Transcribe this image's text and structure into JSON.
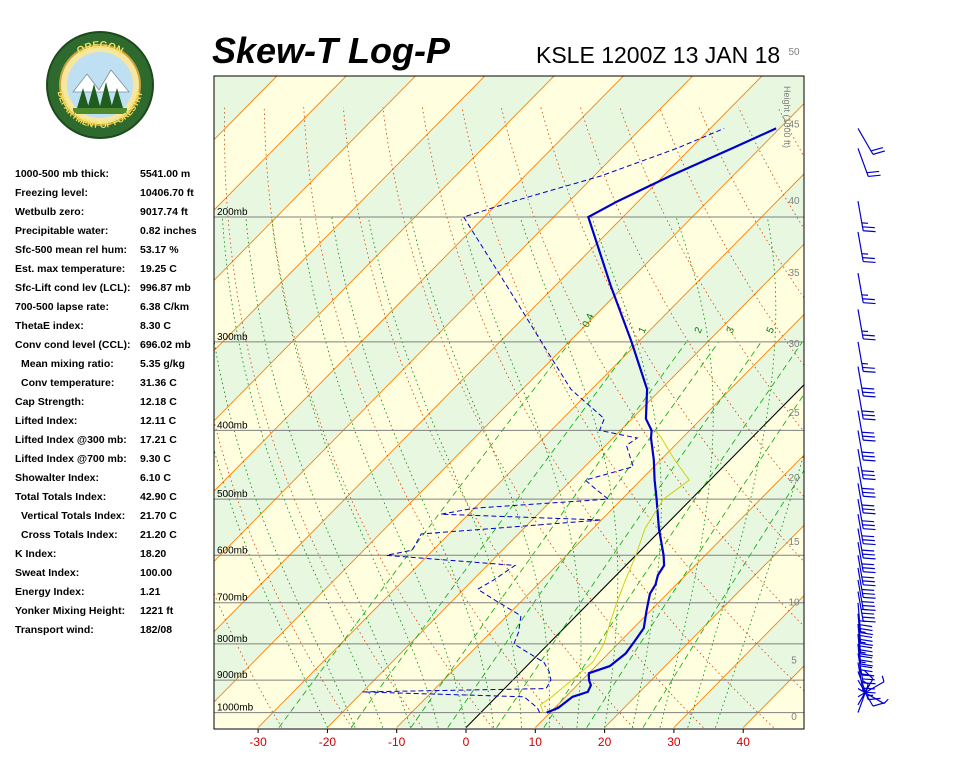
{
  "header": {
    "title": "Skew-T Log-P",
    "station_time": "KSLE 1200Z 13 JAN 18"
  },
  "logo": {
    "top_text": "OREGON",
    "bottom_text": "DEPARTMENT OF FORESTRY"
  },
  "indices": [
    {
      "label": "1000-500 mb thick:",
      "value": "5541.00 m"
    },
    {
      "label": "Freezing level:",
      "value": "10406.70 ft"
    },
    {
      "label": "Wetbulb zero:",
      "value": "9017.74 ft"
    },
    {
      "label": "Precipitable water:",
      "value": "0.82 inches"
    },
    {
      "label": "Sfc-500 mean rel hum:",
      "value": "53.17 %"
    },
    {
      "label": "Est. max temperature:",
      "value": "19.25 C"
    },
    {
      "label": "Sfc-Lift cond lev (LCL):",
      "value": "996.87 mb"
    },
    {
      "label": "700-500 lapse rate:",
      "value": "6.38 C/km"
    },
    {
      "label": "ThetaE index:",
      "value": "8.30 C"
    },
    {
      "label": "Conv cond level (CCL):",
      "value": "696.02 mb"
    },
    {
      "label": "Mean mixing ratio:",
      "value": "5.35 g/kg",
      "indent": true
    },
    {
      "label": "Conv temperature:",
      "value": "31.36 C",
      "indent": true
    },
    {
      "label": "Cap Strength:",
      "value": "12.18 C"
    },
    {
      "label": "Lifted Index:",
      "value": "12.11 C"
    },
    {
      "label": "Lifted Index @300 mb:",
      "value": "17.21 C"
    },
    {
      "label": "Lifted Index @700 mb:",
      "value": "9.30 C"
    },
    {
      "label": "Showalter Index:",
      "value": "6.10 C"
    },
    {
      "label": "Total Totals Index:",
      "value": "42.90 C"
    },
    {
      "label": "Vertical Totals Index:",
      "value": "21.70 C",
      "indent": true
    },
    {
      "label": "Cross Totals Index:",
      "value": "21.20 C",
      "indent": true
    },
    {
      "label": "K Index:",
      "value": "18.20"
    },
    {
      "label": "Sweat Index:",
      "value": "100.00"
    },
    {
      "label": "Energy Index:",
      "value": "1.21"
    },
    {
      "label": "Yonker Mixing Height:",
      "value": "1221 ft"
    },
    {
      "label": "Transport wind:",
      "value": "182/08"
    }
  ],
  "chart_data": {
    "type": "line",
    "chart_kind": "skew-t log-p",
    "xlabel": "",
    "ylabel": "",
    "x_axis": {
      "unit": "C",
      "ticks": [
        -30,
        -20,
        -10,
        0,
        10,
        20,
        30,
        40
      ],
      "color": "#cc0000"
    },
    "pressure_axis": {
      "labels": [
        "200mb",
        "300mb",
        "400mb",
        "500mb",
        "600mb",
        "700mb",
        "800mb",
        "900mb",
        "1000mb"
      ],
      "pressures": [
        200,
        300,
        400,
        500,
        600,
        700,
        800,
        900,
        1000
      ],
      "range_mb": [
        1050,
        150
      ],
      "scale": "log"
    },
    "height_axis": {
      "label": "Height (1000 ft)",
      "ticks": [
        "0",
        "5",
        "10",
        "15",
        "20",
        "25",
        "30",
        "35",
        "40",
        "45",
        "50"
      ],
      "pressures": [
        1015,
        845,
        699,
        575,
        467,
        378,
        302,
        240,
        190,
        148,
        117
      ]
    },
    "mixing_ratio_labels": [
      "0.4",
      "1",
      "2",
      "3",
      "5"
    ],
    "grid": true,
    "colors": {
      "temperature": "#0000cc",
      "dewpoint": "#0000cc",
      "parcel": "#cccc00",
      "isotherm": "#ff8000",
      "dry_adiabat": "#d04000",
      "moist_adiabat": "#008000",
      "mixing_ratio": "#00aa00",
      "isobar": "#808080",
      "band_yellow": "#ffffe0",
      "band_green": "#e8f8e0",
      "freezing": "#000000",
      "wind_barbs": "#0000cc",
      "tick_labels": "#cc0000"
    },
    "series": [
      {
        "name": "Temperature",
        "style": "solid",
        "points": [
          {
            "p": 1000,
            "t": 9.5
          },
          {
            "p": 985,
            "t": 10.5
          },
          {
            "p": 950,
            "t": 11.0
          },
          {
            "p": 935,
            "t": 12.5
          },
          {
            "p": 915,
            "t": 12.0
          },
          {
            "p": 900,
            "t": 11.0
          },
          {
            "p": 880,
            "t": 10.0
          },
          {
            "p": 860,
            "t": 12.0
          },
          {
            "p": 825,
            "t": 12.5
          },
          {
            "p": 790,
            "t": 12.0
          },
          {
            "p": 760,
            "t": 11.5
          },
          {
            "p": 720,
            "t": 9.5
          },
          {
            "p": 680,
            "t": 7.5
          },
          {
            "p": 660,
            "t": 7.0
          },
          {
            "p": 640,
            "t": 6.0
          },
          {
            "p": 620,
            "t": 5.5
          },
          {
            "p": 600,
            "t": 4.0
          },
          {
            "p": 550,
            "t": -0.5
          },
          {
            "p": 500,
            "t": -5.0
          },
          {
            "p": 470,
            "t": -8.0
          },
          {
            "p": 440,
            "t": -11.0
          },
          {
            "p": 410,
            "t": -14.5
          },
          {
            "p": 400,
            "t": -15.5
          },
          {
            "p": 385,
            "t": -18.0
          },
          {
            "p": 350,
            "t": -22.0
          },
          {
            "p": 300,
            "t": -31.0
          },
          {
            "p": 250,
            "t": -42.0
          },
          {
            "p": 200,
            "t": -55.0
          },
          {
            "p": 190,
            "t": -53.0
          },
          {
            "p": 175,
            "t": -49.0
          },
          {
            "p": 160,
            "t": -44.0
          },
          {
            "p": 150,
            "t": -40.5
          }
        ]
      },
      {
        "name": "Dewpoint",
        "style": "dashed",
        "points": [
          {
            "p": 1000,
            "t": 8.5
          },
          {
            "p": 985,
            "t": 7.5
          },
          {
            "p": 950,
            "t": 4.0
          },
          {
            "p": 935,
            "t": -20.0
          },
          {
            "p": 925,
            "t": 6.0
          },
          {
            "p": 900,
            "t": 5.5
          },
          {
            "p": 875,
            "t": 4.0
          },
          {
            "p": 850,
            "t": 2.0
          },
          {
            "p": 800,
            "t": -5.0
          },
          {
            "p": 770,
            "t": -6.0
          },
          {
            "p": 730,
            "t": -8.0
          },
          {
            "p": 700,
            "t": -13.0
          },
          {
            "p": 670,
            "t": -18.0
          },
          {
            "p": 650,
            "t": -17.0
          },
          {
            "p": 620,
            "t": -16.0
          },
          {
            "p": 600,
            "t": -36.0
          },
          {
            "p": 590,
            "t": -33.0
          },
          {
            "p": 560,
            "t": -34.0
          },
          {
            "p": 535,
            "t": -10.0
          },
          {
            "p": 525,
            "t": -34.0
          },
          {
            "p": 515,
            "t": -30.0
          },
          {
            "p": 500,
            "t": -12.0
          },
          {
            "p": 480,
            "t": -16.0
          },
          {
            "p": 470,
            "t": -18.0
          },
          {
            "p": 450,
            "t": -13.0
          },
          {
            "p": 420,
            "t": -17.0
          },
          {
            "p": 410,
            "t": -16.5
          },
          {
            "p": 400,
            "t": -23.0
          },
          {
            "p": 385,
            "t": -24.0
          },
          {
            "p": 350,
            "t": -33.0
          },
          {
            "p": 300,
            "t": -44.0
          },
          {
            "p": 250,
            "t": -57.0
          },
          {
            "p": 200,
            "t": -73.0
          },
          {
            "p": 190,
            "t": -68.0
          },
          {
            "p": 175,
            "t": -59.0
          },
          {
            "p": 160,
            "t": -52.0
          },
          {
            "p": 150,
            "t": -48.0
          }
        ]
      },
      {
        "name": "Parcel",
        "style": "thin",
        "points": [
          {
            "p": 1000,
            "t": 9.0
          },
          {
            "p": 975,
            "t": 7.5
          },
          {
            "p": 950,
            "t": 8.0
          },
          {
            "p": 900,
            "t": 8.5
          },
          {
            "p": 850,
            "t": 9.0
          },
          {
            "p": 800,
            "t": 8.0
          },
          {
            "p": 750,
            "t": 6.0
          },
          {
            "p": 700,
            "t": 4.0
          },
          {
            "p": 650,
            "t": 2.0
          },
          {
            "p": 600,
            "t": 0.0
          },
          {
            "p": 550,
            "t": -2.5
          },
          {
            "p": 500,
            "t": -4.0
          },
          {
            "p": 470,
            "t": -3.0
          },
          {
            "p": 440,
            "t": -8.0
          },
          {
            "p": 410,
            "t": -13.0
          },
          {
            "p": 400,
            "t": -15.0
          }
        ]
      }
    ],
    "wind_barbs": [
      {
        "p": 1000,
        "dir": 200,
        "spd": 8
      },
      {
        "p": 975,
        "dir": 210,
        "spd": 10
      },
      {
        "p": 950,
        "dir": 240,
        "spd": 8
      },
      {
        "p": 925,
        "dir": 300,
        "spd": 8
      },
      {
        "p": 900,
        "dir": 330,
        "spd": 10
      },
      {
        "p": 875,
        "dir": 340,
        "spd": 15
      },
      {
        "p": 850,
        "dir": 350,
        "spd": 20
      },
      {
        "p": 825,
        "dir": 350,
        "spd": 30
      },
      {
        "p": 800,
        "dir": 355,
        "spd": 35
      },
      {
        "p": 775,
        "dir": 355,
        "spd": 35
      },
      {
        "p": 750,
        "dir": 355,
        "spd": 35
      },
      {
        "p": 725,
        "dir": 355,
        "spd": 35
      },
      {
        "p": 700,
        "dir": 355,
        "spd": 35
      },
      {
        "p": 675,
        "dir": 350,
        "spd": 35
      },
      {
        "p": 650,
        "dir": 350,
        "spd": 30
      },
      {
        "p": 625,
        "dir": 350,
        "spd": 30
      },
      {
        "p": 600,
        "dir": 350,
        "spd": 30
      },
      {
        "p": 575,
        "dir": 350,
        "spd": 30
      },
      {
        "p": 550,
        "dir": 350,
        "spd": 30
      },
      {
        "p": 525,
        "dir": 350,
        "spd": 30
      },
      {
        "p": 500,
        "dir": 350,
        "spd": 30
      },
      {
        "p": 475,
        "dir": 350,
        "spd": 30
      },
      {
        "p": 450,
        "dir": 350,
        "spd": 30
      },
      {
        "p": 425,
        "dir": 350,
        "spd": 30
      },
      {
        "p": 400,
        "dir": 350,
        "spd": 30
      },
      {
        "p": 375,
        "dir": 350,
        "spd": 30
      },
      {
        "p": 350,
        "dir": 350,
        "spd": 30
      },
      {
        "p": 325,
        "dir": 350,
        "spd": 30
      },
      {
        "p": 300,
        "dir": 350,
        "spd": 25
      },
      {
        "p": 270,
        "dir": 350,
        "spd": 25
      },
      {
        "p": 240,
        "dir": 350,
        "spd": 25
      },
      {
        "p": 210,
        "dir": 350,
        "spd": 25
      },
      {
        "p": 190,
        "dir": 350,
        "spd": 25
      },
      {
        "p": 160,
        "dir": 340,
        "spd": 20
      },
      {
        "p": 150,
        "dir": 330,
        "spd": 20
      }
    ]
  }
}
